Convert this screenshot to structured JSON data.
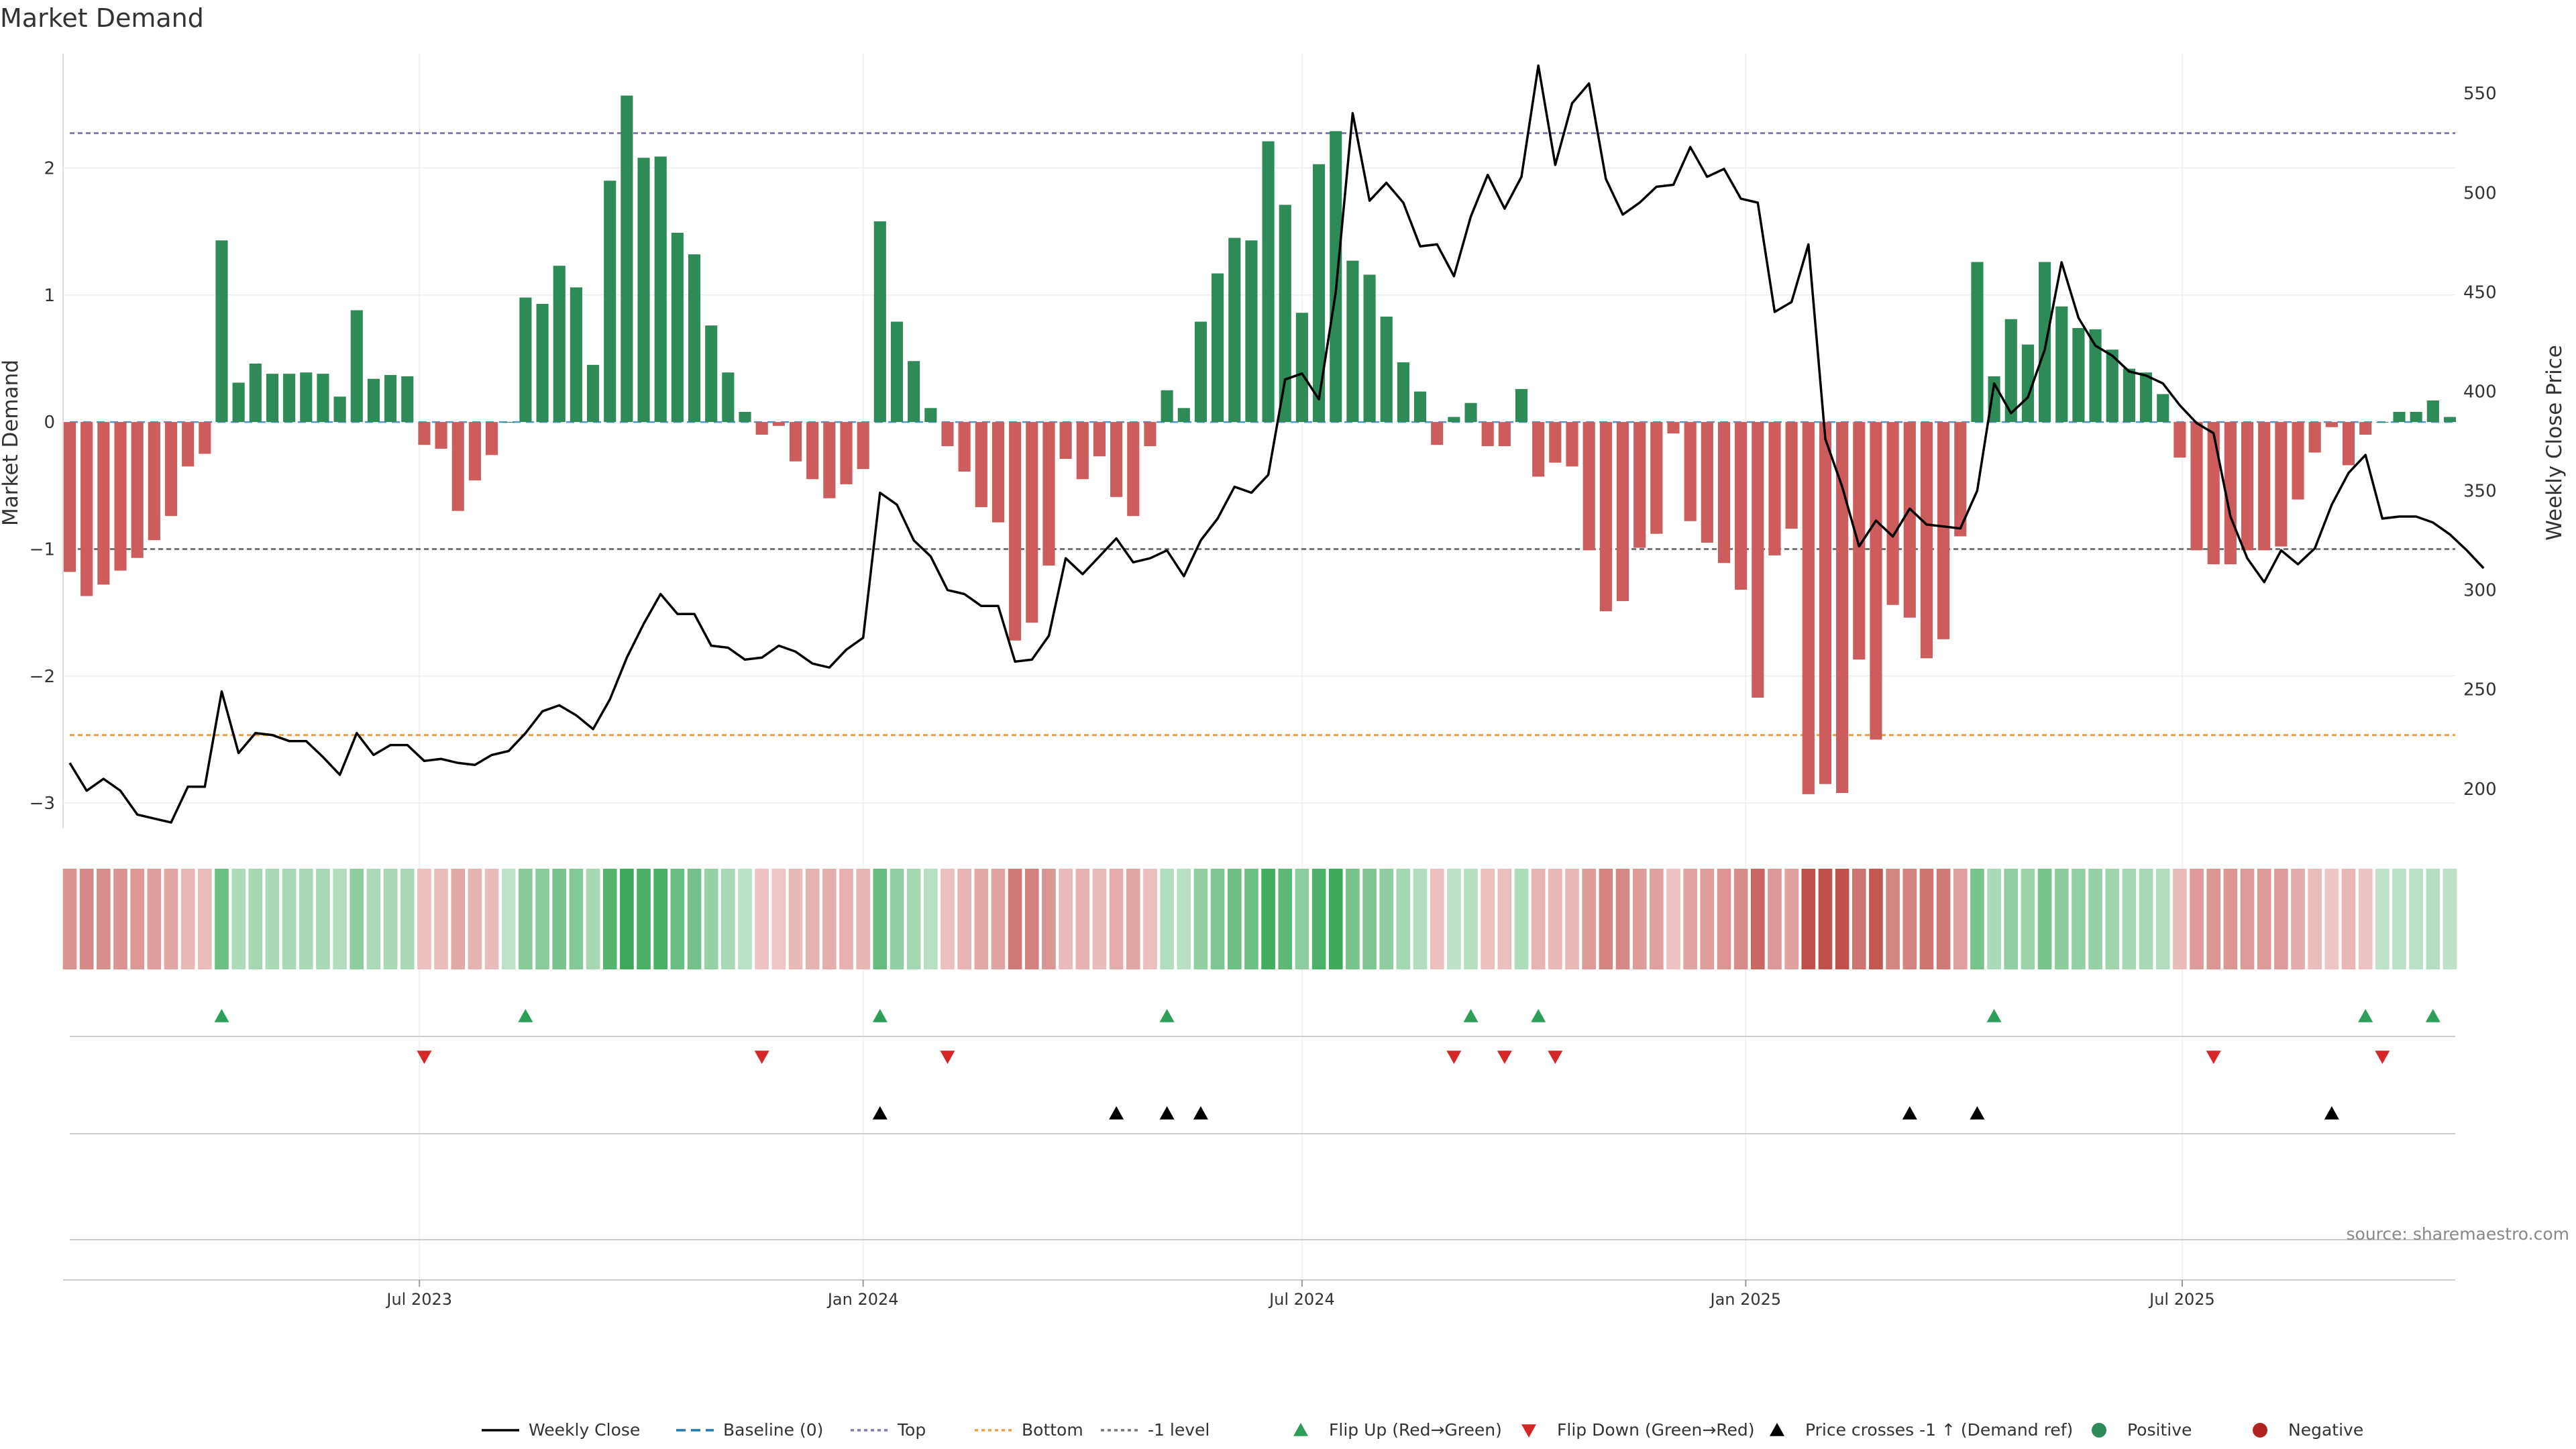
{
  "chart_data": {
    "type": "bar",
    "title": "Market Demand",
    "ylabel_left": "Market Demand",
    "ylabel_right": "Weekly Close Price",
    "ylim_left": [
      -3.2,
      2.9
    ],
    "ylim_right": [
      180,
      570
    ],
    "yticks_left": [
      -3,
      -2,
      -1,
      0,
      1,
      2
    ],
    "yticks_right": [
      200,
      250,
      300,
      350,
      400,
      450,
      500,
      550
    ],
    "x_start": "2023-02-06",
    "x_step_days": 7,
    "x_tick_labels": [
      {
        "date": "2023-07-01",
        "label": "Jul 2023"
      },
      {
        "date": "2024-01-01",
        "label": "Jan 2024"
      },
      {
        "date": "2024-07-01",
        "label": "Jul 2024"
      },
      {
        "date": "2025-01-01",
        "label": "Jan 2025"
      },
      {
        "date": "2025-07-01",
        "label": "Jul 2025"
      }
    ],
    "reference_lines": [
      {
        "name": "Top",
        "value_right": 530,
        "color": "#7f7faf"
      },
      {
        "name": "Bottom",
        "value_right": 227,
        "color": "#e8a040"
      },
      {
        "name": "-1 level",
        "value_left": -1,
        "color": "#777777"
      }
    ],
    "series": [
      {
        "name": "Market Demand",
        "values": [
          -1.18,
          -1.37,
          -1.28,
          -1.17,
          -1.07,
          -0.93,
          -0.74,
          -0.35,
          -0.25,
          1.43,
          0.31,
          0.46,
          0.38,
          0.38,
          0.39,
          0.38,
          0.2,
          0.88,
          0.34,
          0.37,
          0.36,
          -0.18,
          -0.21,
          -0.7,
          -0.46,
          -0.26,
          0.0,
          0.98,
          0.93,
          1.23,
          1.06,
          0.45,
          1.9,
          2.57,
          2.08,
          2.09,
          1.49,
          1.32,
          0.76,
          0.39,
          0.08,
          -0.1,
          -0.03,
          -0.31,
          -0.45,
          -0.6,
          -0.49,
          -0.37,
          1.58,
          0.79,
          0.48,
          0.11,
          -0.19,
          -0.39,
          -0.67,
          -0.79,
          -1.72,
          -1.58,
          -1.13,
          -0.29,
          -0.45,
          -0.27,
          -0.59,
          -0.74,
          -0.19,
          0.25,
          0.11,
          0.79,
          1.17,
          1.45,
          1.43,
          2.21,
          1.71,
          0.86,
          2.03,
          2.29,
          1.27,
          1.16,
          0.83,
          0.47,
          0.24,
          -0.18,
          0.04,
          0.15,
          -0.19,
          -0.19,
          0.26,
          -0.43,
          -0.32,
          -0.35,
          -1.01,
          -1.49,
          -1.41,
          -0.99,
          -0.88,
          -0.09,
          -0.78,
          -0.95,
          -1.11,
          -1.32,
          -2.17,
          -1.05,
          -0.84,
          -2.93,
          -2.85,
          -2.92,
          -1.87,
          -2.5,
          -1.44,
          -1.54,
          -1.86,
          -1.71,
          -0.9,
          1.26,
          0.36,
          0.81,
          0.61,
          1.26,
          0.91,
          0.74,
          0.73,
          0.57,
          0.42,
          0.39,
          0.22,
          -0.28,
          -1.01,
          -1.12,
          -1.12,
          -1.01,
          -1.01,
          -0.98,
          -0.61,
          -0.24,
          -0.04,
          -0.34,
          -0.1,
          0.0,
          0.08,
          0.08,
          0.17,
          0.04
        ]
      },
      {
        "name": "Weekly Close",
        "values": [
          213,
          199,
          205,
          199,
          187,
          185,
          183,
          201,
          201,
          249,
          218,
          228,
          227,
          224,
          224,
          216,
          207,
          228,
          217,
          222,
          222,
          214,
          215,
          213,
          212,
          217,
          219,
          228,
          239,
          242,
          237,
          230,
          245,
          266,
          283,
          298,
          288,
          288,
          272,
          271,
          265,
          266,
          272,
          269,
          263,
          261,
          270,
          276,
          349,
          343,
          325,
          317,
          300,
          298,
          292,
          292,
          264,
          265,
          277,
          316,
          308,
          317,
          326,
          314,
          316,
          320,
          307,
          325,
          336,
          352,
          349,
          358,
          406,
          409,
          396,
          450,
          540,
          496,
          505,
          495,
          473,
          474,
          458,
          488,
          509,
          492,
          508,
          564,
          514,
          545,
          555,
          507,
          489,
          495,
          503,
          504,
          523,
          508,
          512,
          497,
          495,
          440,
          445,
          474,
          376,
          352,
          322,
          335,
          327,
          341,
          333,
          332,
          331,
          350,
          404,
          389,
          397,
          421,
          465,
          437,
          423,
          418,
          410,
          408,
          404,
          393,
          384,
          379,
          337,
          316,
          304,
          320,
          313,
          321,
          343,
          359,
          368,
          336,
          337,
          337,
          334,
          328,
          320,
          311
        ]
      }
    ],
    "demand_heat_strip": "shade per week derived from Market Demand value",
    "event_rows": [
      {
        "name": "Flip Up (Red→Green)",
        "marker": "triangle-up",
        "color": "#2ca05a",
        "weeks": [
          9,
          27,
          48,
          65,
          83,
          87,
          114,
          136,
          140
        ]
      },
      {
        "name": "Flip Down (Green→Red)",
        "marker": "triangle-down",
        "color": "#d62728",
        "weeks": [
          21,
          41,
          52,
          82,
          85,
          88,
          127,
          137
        ]
      },
      {
        "name": "Price crosses -1 ↑ (Demand ref)",
        "marker": "triangle-up",
        "color": "#000000",
        "weeks": [
          48,
          62,
          65,
          67,
          109,
          113,
          134
        ]
      }
    ],
    "legend": {
      "position": "bottom-center",
      "entries": [
        {
          "label": "Weekly Close",
          "style": "line",
          "color": "#000000"
        },
        {
          "label": "Baseline (0)",
          "style": "dashed",
          "color": "#1f77b4"
        },
        {
          "label": "Top",
          "style": "dotted",
          "color": "#7f7faf"
        },
        {
          "label": "Bottom",
          "style": "dotted",
          "color": "#e8a040"
        },
        {
          "label": "-1 level",
          "style": "dotted",
          "color": "#777777"
        },
        {
          "label": "Flip Up (Red→Green)",
          "style": "triangle-up",
          "color": "#2ca05a"
        },
        {
          "label": "Flip Down (Green→Red)",
          "style": "triangle-down",
          "color": "#d62728"
        },
        {
          "label": "Price crosses -1 ↑ (Demand ref)",
          "style": "triangle-up",
          "color": "#000000"
        },
        {
          "label": "Positive",
          "style": "circle",
          "color": "#2e8b57"
        },
        {
          "label": "Negative",
          "style": "circle",
          "color": "#b22222"
        }
      ]
    },
    "colors": {
      "positive": "#2e8b57",
      "negative": "#cd5c5c",
      "price": "#000000"
    },
    "source": "source: sharemaestro.com"
  }
}
